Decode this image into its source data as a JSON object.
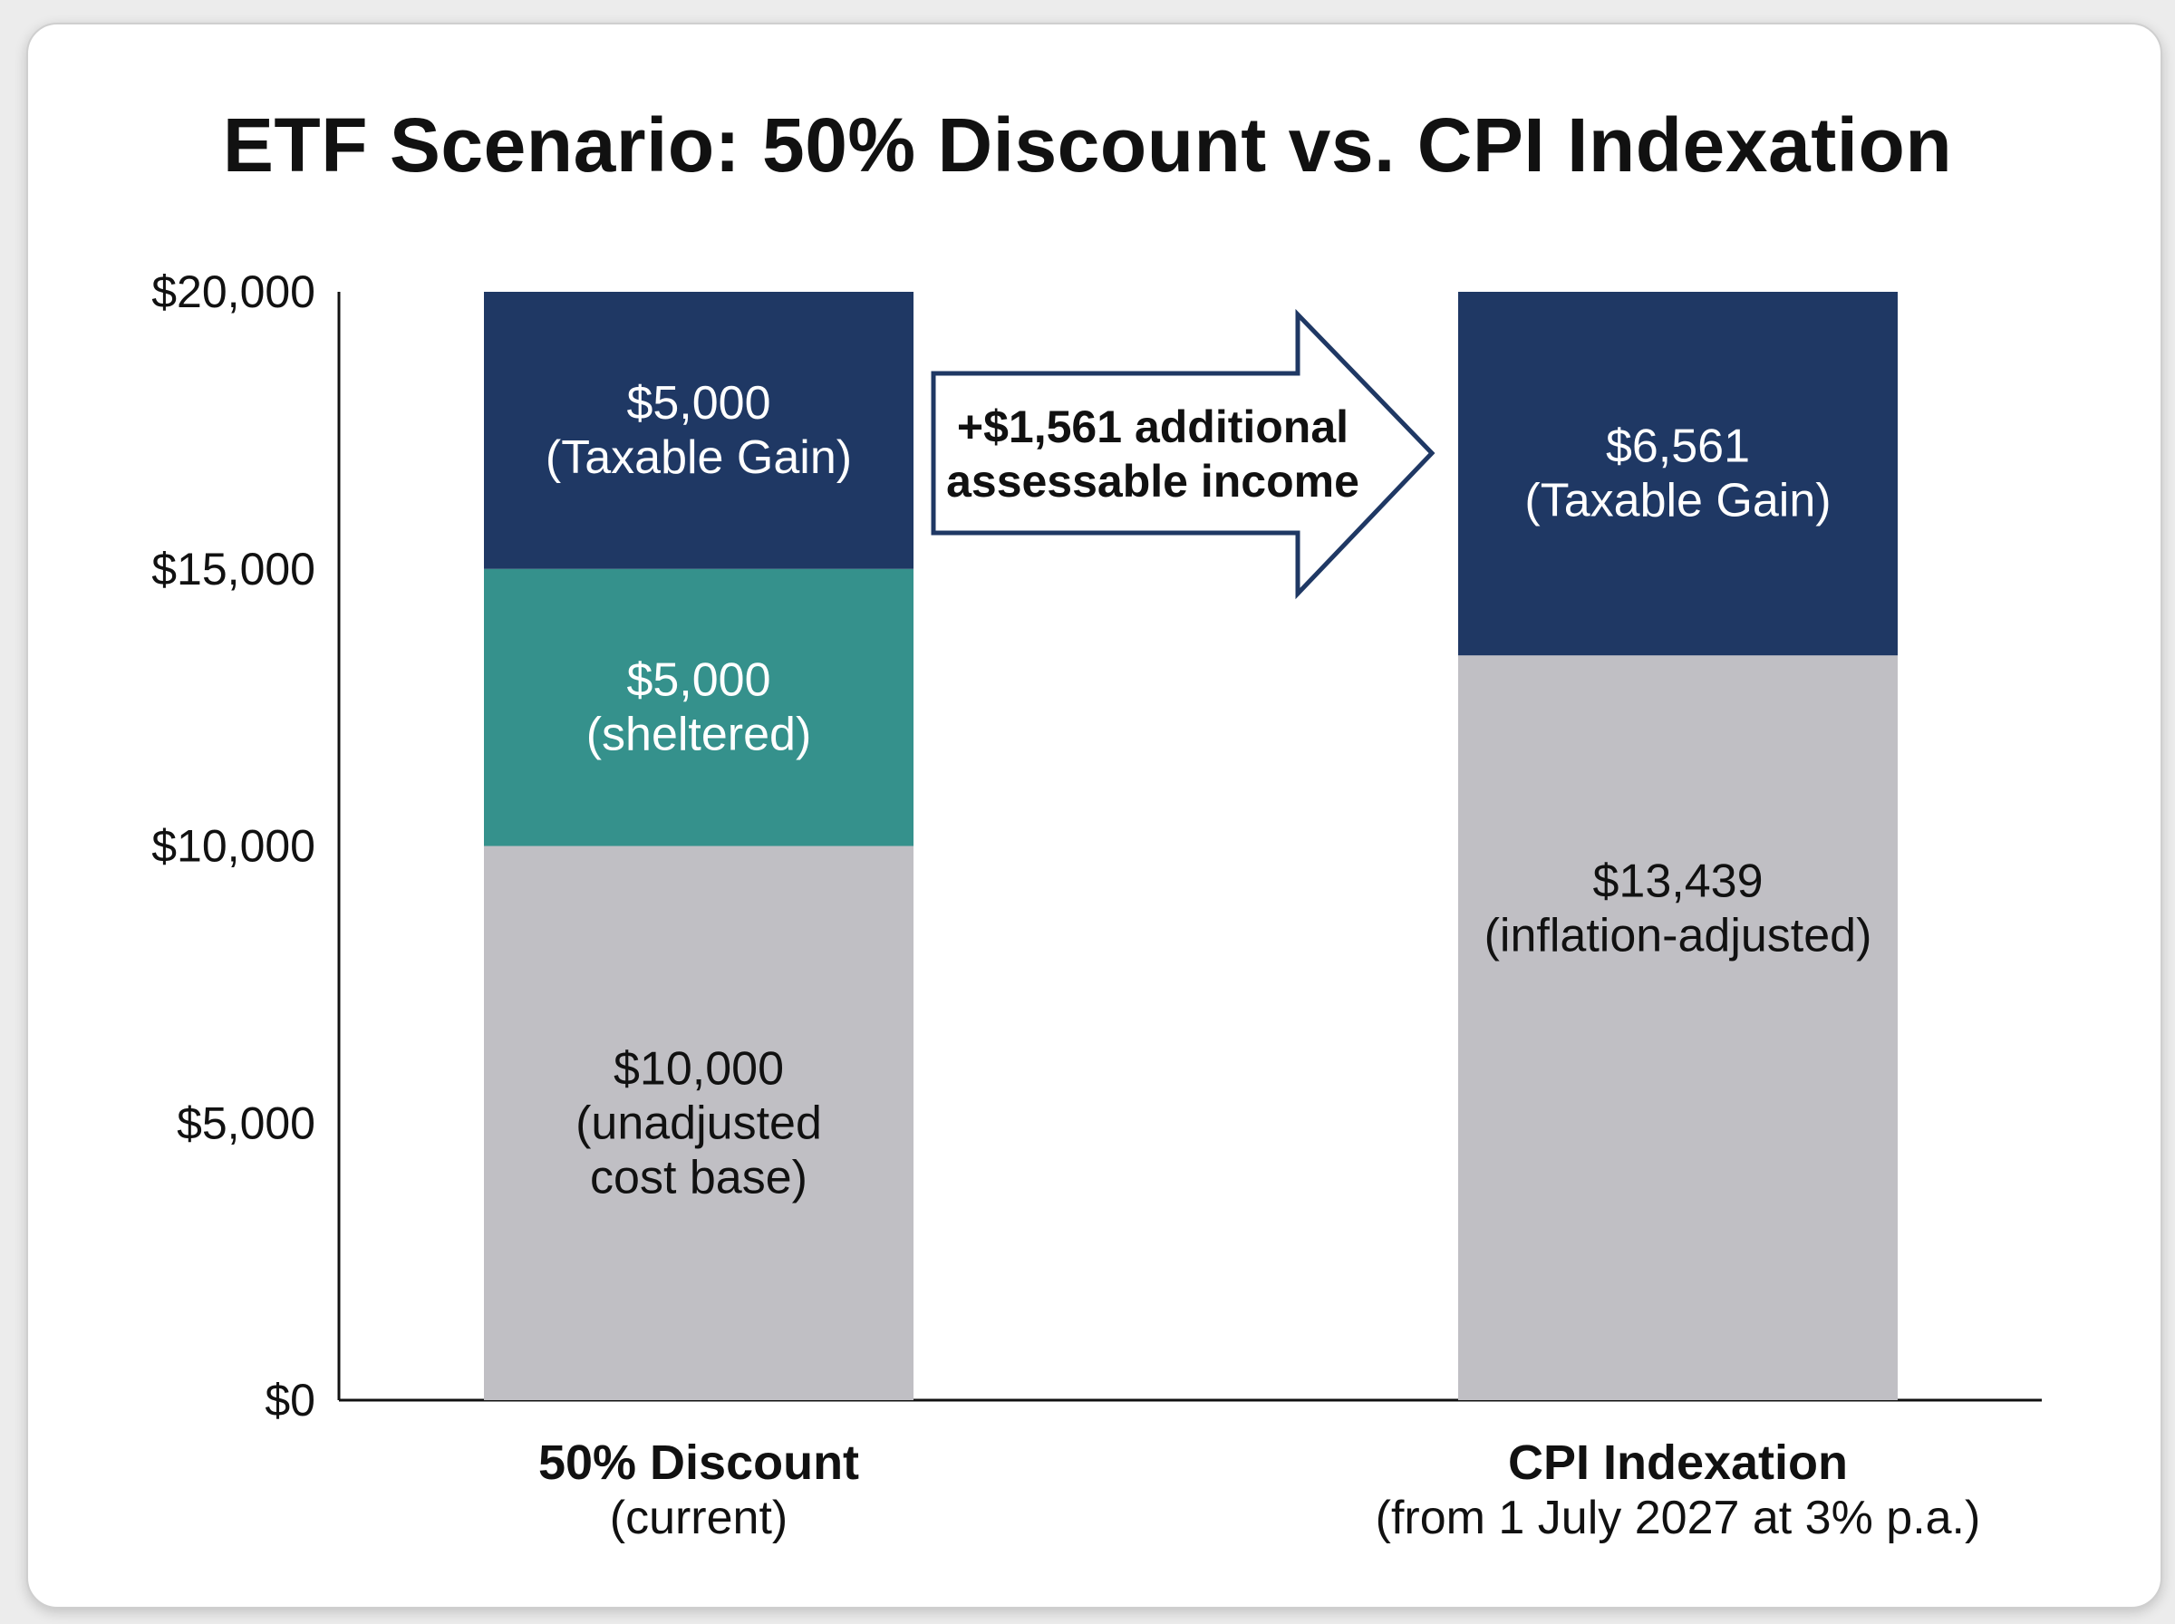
{
  "chart_data": {
    "type": "bar",
    "title": "ETF Scenario: 50% Discount vs. CPI Indexation",
    "stacked": true,
    "categories": [
      {
        "name": "50% Discount",
        "sub": "(current)"
      },
      {
        "name": "CPI Indexation",
        "sub": "(from 1 July 2027 at 3% p.a.)"
      }
    ],
    "bars": [
      {
        "segments": [
          {
            "value": 10000,
            "color": "#c0bfc4",
            "text_color": "#111111",
            "label": [
              "$10,000",
              "(unadjusted",
              "cost base)"
            ]
          },
          {
            "value": 5000,
            "color": "#35918c",
            "text_color": "#ffffff",
            "label": [
              "$5,000",
              "(sheltered)"
            ]
          },
          {
            "value": 5000,
            "color": "#1f3864",
            "text_color": "#ffffff",
            "label": [
              "$5,000",
              "(Taxable Gain)"
            ]
          }
        ]
      },
      {
        "segments": [
          {
            "value": 13439,
            "color": "#c0bfc4",
            "text_color": "#111111",
            "label": [
              "$13,439",
              "(inflation-adjusted)"
            ]
          },
          {
            "value": 6561,
            "color": "#1f3864",
            "text_color": "#ffffff",
            "label": [
              "$6,561",
              "(Taxable Gain)"
            ]
          }
        ]
      }
    ],
    "ylim": [
      0,
      20000
    ],
    "yticks": [
      0,
      5000,
      10000,
      15000,
      20000
    ],
    "ytick_labels": [
      "$0",
      "$5,000",
      "$10,000",
      "$15,000",
      "$20,000"
    ],
    "grid": false,
    "annotation": {
      "lines": [
        "+$1,561 additional",
        "assessable income"
      ],
      "value": 1561,
      "shape": "right-arrow"
    }
  },
  "colors": {
    "axis": "#111111",
    "arrow_border": "#1f3864",
    "background": "#ffffff"
  }
}
